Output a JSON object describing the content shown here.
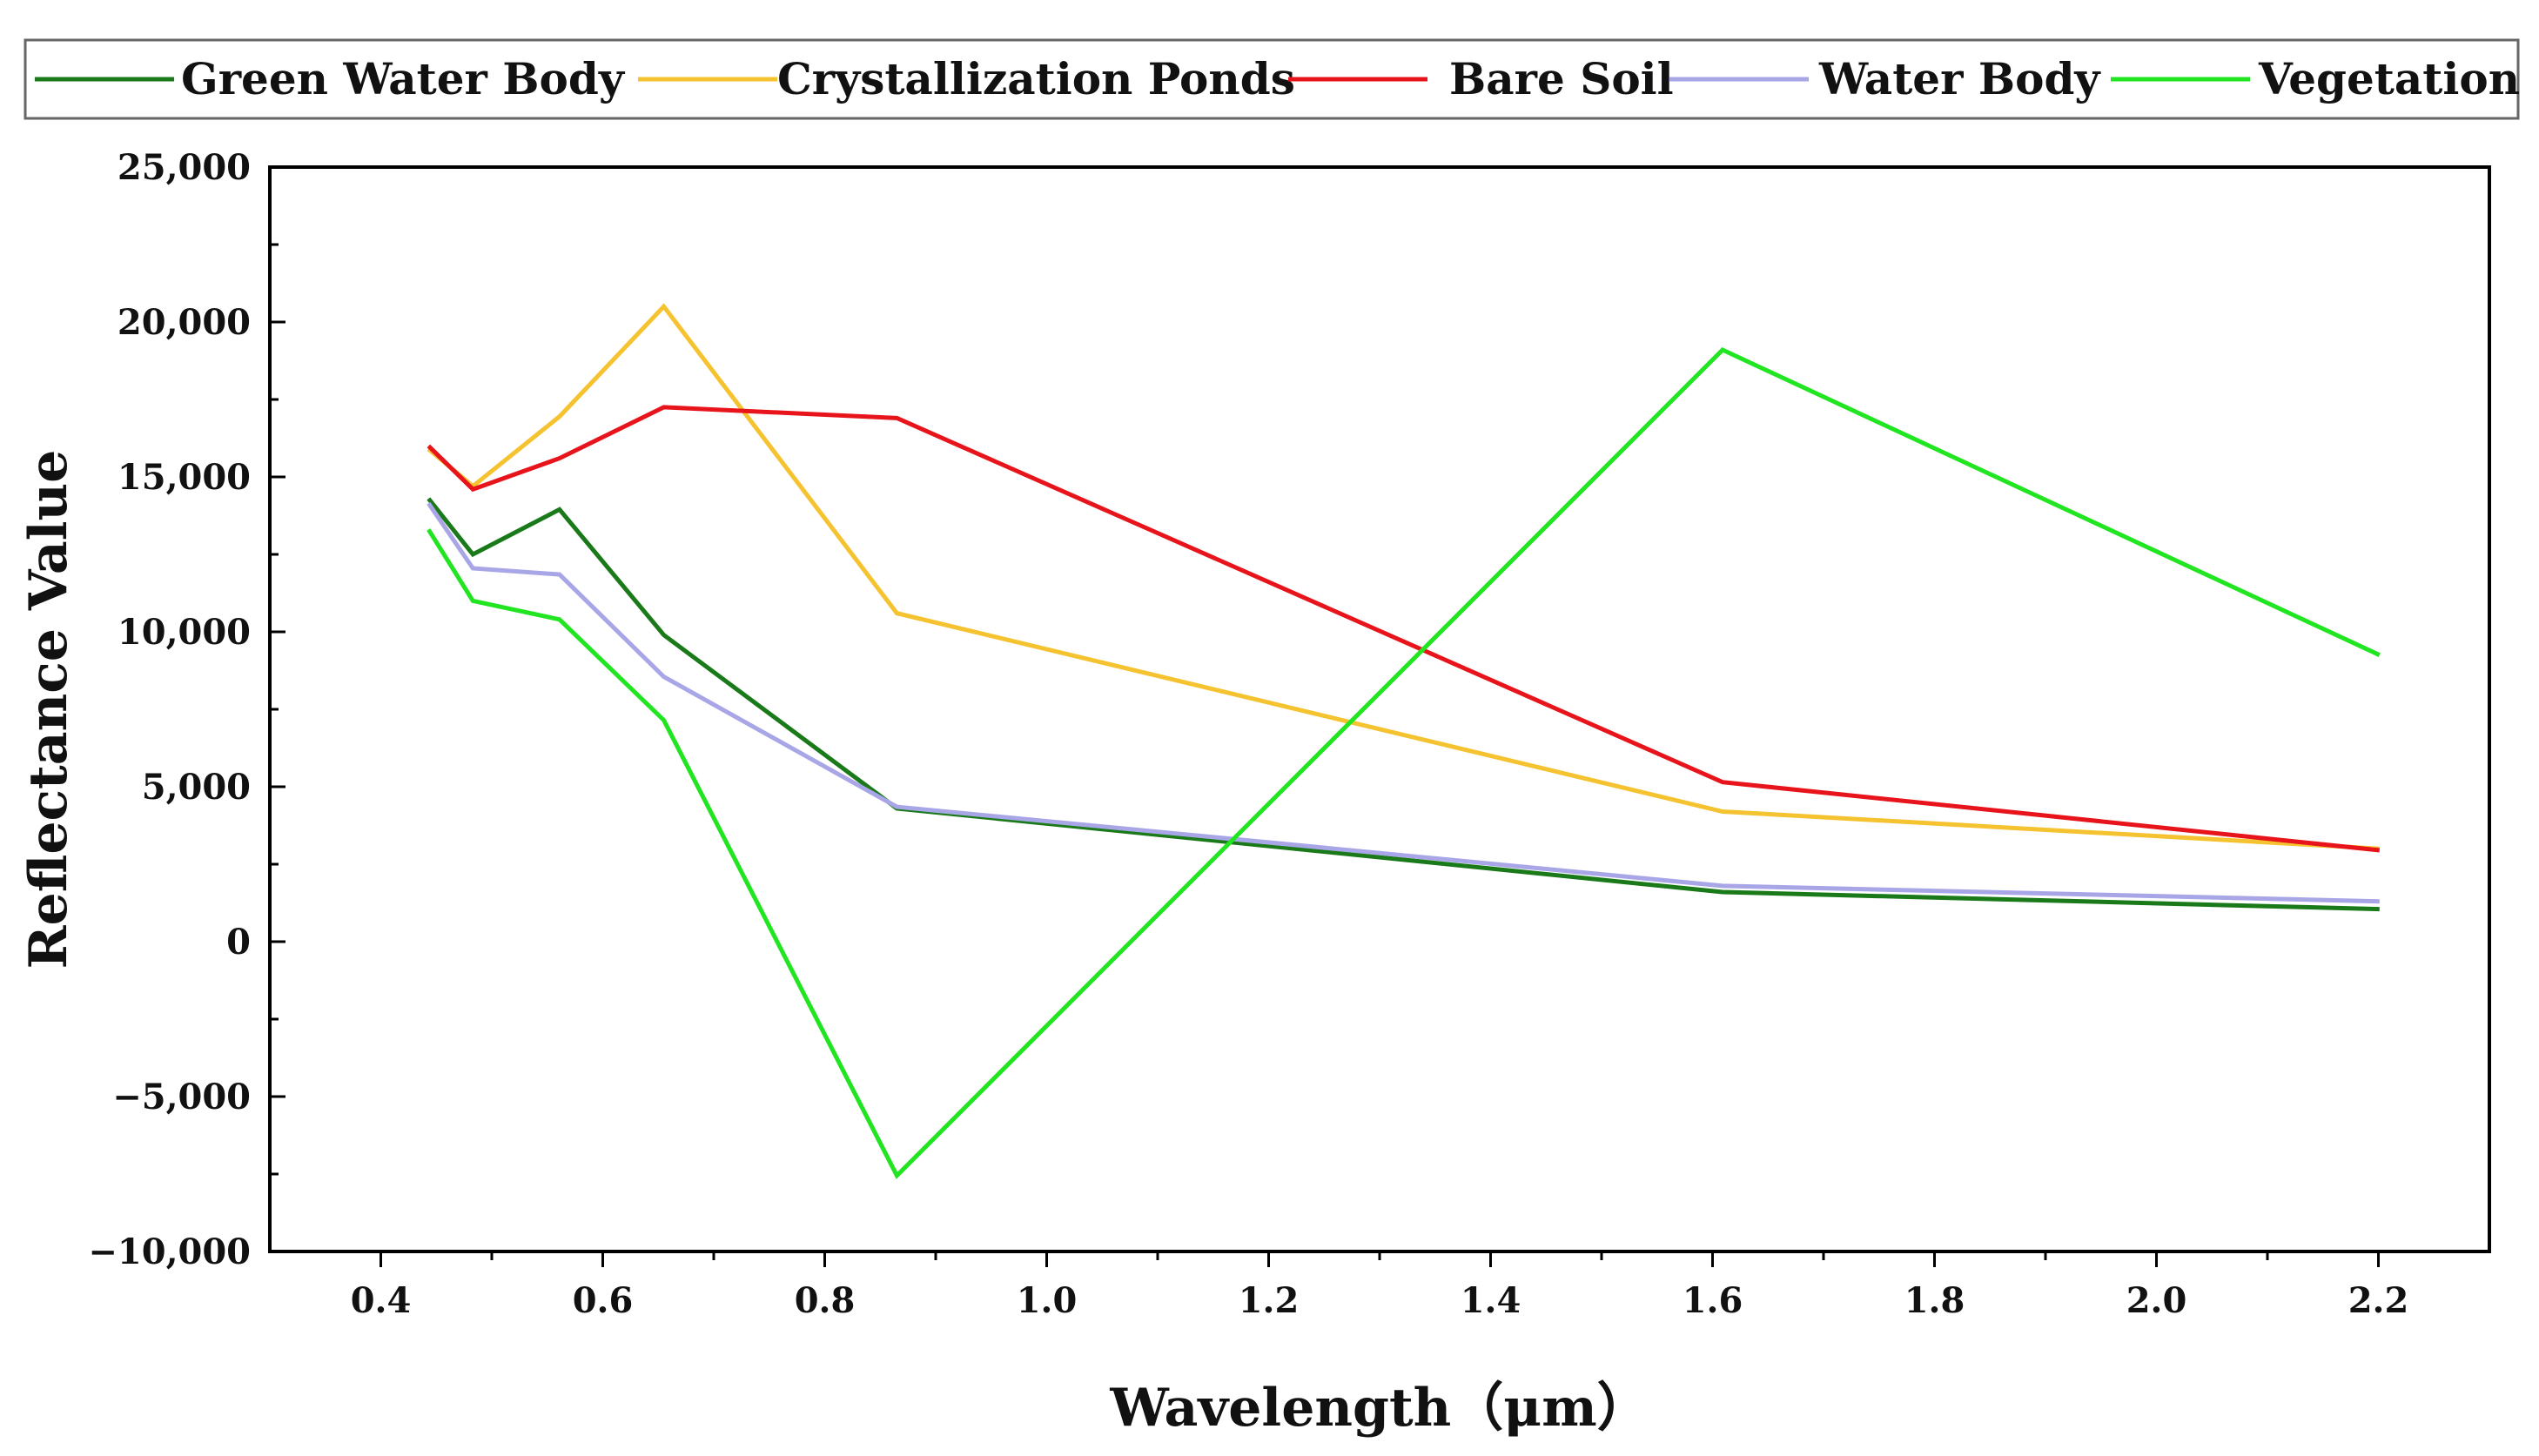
{
  "chart_data": {
    "type": "line",
    "title": "",
    "xlabel": "Wavelength（μm）",
    "ylabel": "Reflectance Value",
    "xlim": [
      0.3,
      2.3
    ],
    "ylim": [
      -10000,
      25000
    ],
    "xticks": [
      0.4,
      0.6,
      0.8,
      1.0,
      1.2,
      1.4,
      1.6,
      1.8,
      2.0,
      2.2
    ],
    "xtick_labels": [
      "0.4",
      "0.6",
      "0.8",
      "1.0",
      "1.2",
      "1.4",
      "1.6",
      "1.8",
      "2.0",
      "2.2"
    ],
    "yticks": [
      -10000,
      -5000,
      0,
      5000,
      10000,
      15000,
      20000,
      25000
    ],
    "ytick_labels": [
      "−10,000",
      "−5,000",
      "0",
      "5,000",
      "10,000",
      "15,000",
      "20,000",
      "25,000"
    ],
    "grid": false,
    "legend_position": "top",
    "x": [
      0.443,
      0.483,
      0.561,
      0.655,
      0.865,
      1.609,
      2.201
    ],
    "series": [
      {
        "name": "Green Water Body",
        "color": "#1a7a1a",
        "values": [
          14300,
          12500,
          13950,
          9900,
          4300,
          1600,
          1050
        ]
      },
      {
        "name": "Crystallization Ponds",
        "color": "#f5c230",
        "values": [
          15900,
          14700,
          16950,
          20500,
          10600,
          4200,
          3000
        ]
      },
      {
        "name": "Bare Soil",
        "color": "#e8141b",
        "values": [
          16000,
          14600,
          15600,
          17250,
          16900,
          5150,
          2950
        ]
      },
      {
        "name": "Water Body",
        "color": "#a9a6e8",
        "values": [
          14150,
          12050,
          11850,
          8550,
          4350,
          1800,
          1300
        ]
      },
      {
        "name": "Vegetation",
        "color": "#22e522",
        "values": [
          13300,
          11000,
          10400,
          7150,
          -7550,
          19100,
          9250
        ]
      }
    ]
  }
}
